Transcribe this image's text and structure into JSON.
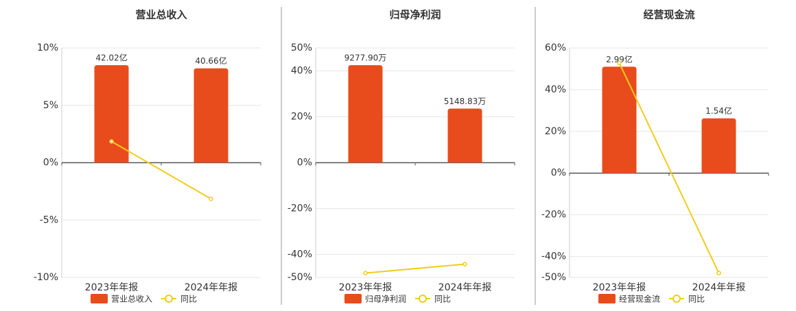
{
  "chart_data": [
    {
      "type": "combo",
      "title": "营业总收入",
      "categories": [
        "2023年年报",
        "2024年年报"
      ],
      "series": [
        {
          "name": "营业总收入",
          "type": "bar",
          "color": "#e84c1c",
          "values": [
            42.02,
            40.66
          ],
          "value_labels": [
            "42.02亿",
            "40.66亿"
          ]
        },
        {
          "name": "同比",
          "type": "line",
          "color": "#f2cc1a",
          "values": [
            1.85,
            -3.15
          ]
        }
      ],
      "ylim": [
        -10,
        10
      ],
      "yticks": [
        {
          "value": -10,
          "label": "-10%"
        },
        {
          "value": -5,
          "label": "-5%"
        },
        {
          "value": 0,
          "label": "0%"
        },
        {
          "value": 5,
          "label": "5%"
        },
        {
          "value": 10,
          "label": "10%"
        }
      ],
      "grid": true
    },
    {
      "type": "combo",
      "title": "归母净利润",
      "categories": [
        "2023年年报",
        "2024年年报"
      ],
      "series": [
        {
          "name": "归母净利润",
          "type": "bar",
          "color": "#e84c1c",
          "values": [
            9277.9,
            5148.83
          ],
          "value_labels": [
            "9277.90万",
            "5148.83万"
          ]
        },
        {
          "name": "同比",
          "type": "line",
          "color": "#f2cc1a",
          "values": [
            -48.1,
            -44.2
          ]
        }
      ],
      "ylim": [
        -50,
        50
      ],
      "yticks": [
        {
          "value": -50,
          "label": "-50%"
        },
        {
          "value": -40,
          "label": "-40%"
        },
        {
          "value": -20,
          "label": "-20%"
        },
        {
          "value": 0,
          "label": "0%"
        },
        {
          "value": 20,
          "label": "20%"
        },
        {
          "value": 40,
          "label": "40%"
        },
        {
          "value": 50,
          "label": "50%"
        }
      ],
      "grid": true
    },
    {
      "type": "combo",
      "title": "经营现金流",
      "categories": [
        "2023年年报",
        "2024年年报"
      ],
      "series": [
        {
          "name": "经营现金流",
          "type": "bar",
          "color": "#e84c1c",
          "values": [
            2.99,
            1.54
          ],
          "value_labels": [
            "2.99亿",
            "1.54亿"
          ]
        },
        {
          "name": "同比",
          "type": "line",
          "color": "#f2cc1a",
          "values": [
            52.8,
            -47.9
          ]
        }
      ],
      "ylim": [
        -50,
        60
      ],
      "yticks": [
        {
          "value": -50,
          "label": "-50%"
        },
        {
          "value": -40,
          "label": "-40%"
        },
        {
          "value": -20,
          "label": "-20%"
        },
        {
          "value": 0,
          "label": "0%"
        },
        {
          "value": 20,
          "label": "20%"
        },
        {
          "value": 40,
          "label": "40%"
        },
        {
          "value": 60,
          "label": "60%"
        }
      ],
      "grid": true
    }
  ]
}
